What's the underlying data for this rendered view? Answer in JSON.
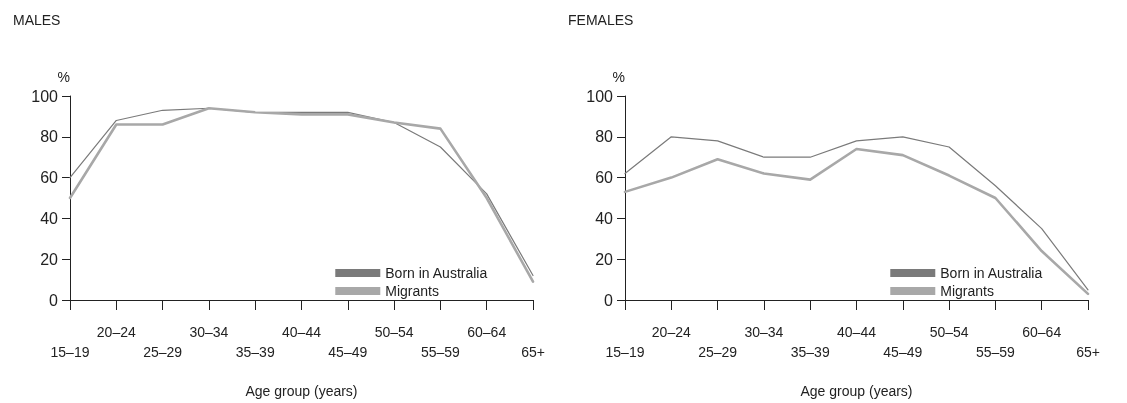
{
  "chart_data": [
    {
      "type": "line",
      "title": "MALES",
      "ylabel": "%",
      "xlabel": "Age group (years)",
      "categories": [
        "15–19",
        "20–24",
        "25–29",
        "30–34",
        "35–39",
        "40–44",
        "45–49",
        "50–54",
        "55–59",
        "60–64",
        "65+"
      ],
      "ylim": [
        0,
        100
      ],
      "yticks": [
        0,
        20,
        40,
        60,
        80,
        100
      ],
      "grid": false,
      "legend": "bottom right",
      "marker": "none",
      "series": [
        {
          "name": "Born in Australia",
          "color": "#7a7a7a",
          "values": [
            60,
            88,
            93,
            94,
            92,
            92,
            92,
            87,
            75,
            52,
            12
          ]
        },
        {
          "name": "Migrants",
          "color": "#a8a8a8",
          "values": [
            50,
            86,
            86,
            94,
            92,
            91,
            91,
            87,
            84,
            50,
            9
          ]
        }
      ]
    },
    {
      "type": "line",
      "title": "FEMALES",
      "ylabel": "%",
      "xlabel": "Age group (years)",
      "categories": [
        "15–19",
        "20–24",
        "25–29",
        "30–34",
        "35–39",
        "40–44",
        "45–49",
        "50–54",
        "55–59",
        "60–64",
        "65+"
      ],
      "ylim": [
        0,
        100
      ],
      "yticks": [
        0,
        20,
        40,
        60,
        80,
        100
      ],
      "grid": false,
      "legend": "bottom right",
      "marker": "none",
      "series": [
        {
          "name": "Born in Australia",
          "color": "#7a7a7a",
          "values": [
            62,
            80,
            78,
            70,
            70,
            78,
            80,
            75,
            56,
            35,
            5
          ]
        },
        {
          "name": "Migrants",
          "color": "#a8a8a8",
          "values": [
            53,
            60,
            69,
            62,
            59,
            74,
            71,
            61,
            50,
            24,
            3
          ]
        }
      ]
    }
  ]
}
